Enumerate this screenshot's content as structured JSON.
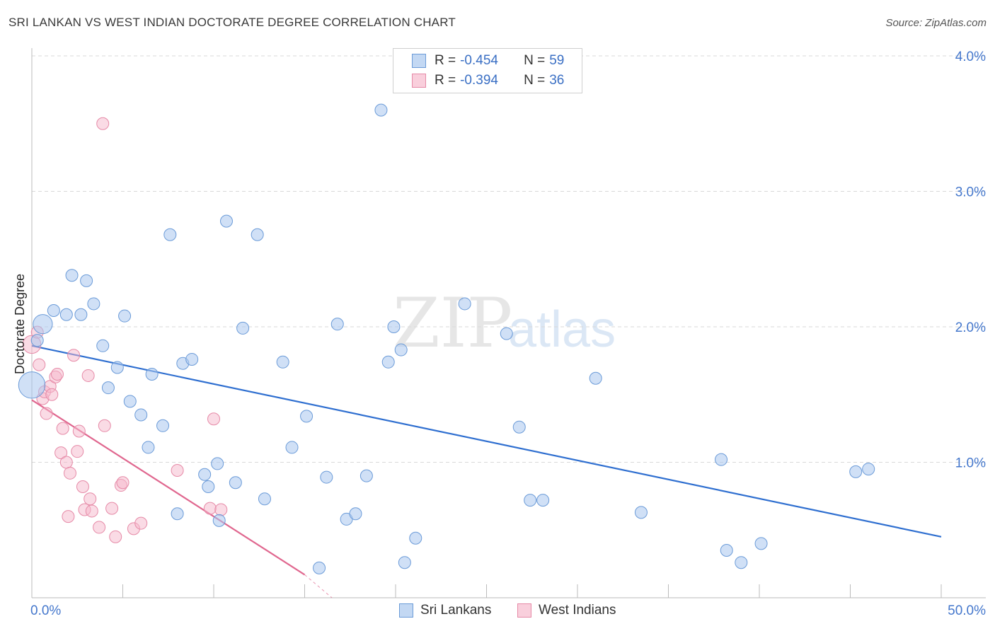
{
  "title": "SRI LANKAN VS WEST INDIAN DOCTORATE DEGREE CORRELATION CHART",
  "source": "Source: ZipAtlas.com",
  "watermark": {
    "zip": "ZIP",
    "atlas": "atlas"
  },
  "colors": {
    "blue": "#6b9bd8",
    "blue_fill": "#a9c7ef",
    "blue_line": "#2f6fd0",
    "pink": "#e68aa7",
    "pink_fill": "#f6b8cb",
    "pink_line": "#e0678f",
    "accent_text": "#3a6fc4"
  },
  "legend": [
    {
      "name": "Sri Lankans",
      "r_label": "R = ",
      "r": "-0.454",
      "n_label": "N = ",
      "n": "59",
      "color": "blue"
    },
    {
      "name": "West Indians",
      "r_label": "R = ",
      "r": "-0.394",
      "n_label": "N = ",
      "n": "36",
      "color": "pink"
    }
  ],
  "chart_data": {
    "type": "scatter",
    "title": "SRI LANKAN VS WEST INDIAN DOCTORATE DEGREE CORRELATION CHART",
    "xlabel": "",
    "ylabel": "Doctorate Degree",
    "xlim": [
      0,
      50
    ],
    "ylim": [
      0,
      4.0
    ],
    "x_tick_labels": [
      "0.0%",
      "50.0%"
    ],
    "y_ticks": [
      1.0,
      2.0,
      3.0,
      4.0
    ],
    "y_tick_labels": [
      "1.0%",
      "2.0%",
      "3.0%",
      "4.0%"
    ],
    "grid": true,
    "legend_position": "top-center",
    "series": [
      {
        "name": "Sri Lankans",
        "r": -0.454,
        "n": 59,
        "points": [
          [
            0.0,
            1.57,
            2.2
          ],
          [
            0.6,
            2.02,
            1.6
          ],
          [
            1.2,
            2.12,
            1
          ],
          [
            1.9,
            2.09,
            1
          ],
          [
            2.2,
            2.38,
            1
          ],
          [
            2.7,
            2.09,
            1
          ],
          [
            3.0,
            2.34,
            1
          ],
          [
            3.4,
            2.17,
            1
          ],
          [
            3.9,
            1.86,
            1
          ],
          [
            4.2,
            1.55,
            1
          ],
          [
            4.7,
            1.7,
            1
          ],
          [
            5.1,
            2.08,
            1
          ],
          [
            5.4,
            1.45,
            1
          ],
          [
            6.0,
            1.35,
            1
          ],
          [
            6.4,
            1.11,
            1
          ],
          [
            6.6,
            1.65,
            1
          ],
          [
            7.2,
            1.27,
            1
          ],
          [
            7.6,
            2.68,
            1
          ],
          [
            8.0,
            0.62,
            1
          ],
          [
            8.3,
            1.73,
            1
          ],
          [
            8.8,
            1.76,
            1
          ],
          [
            9.5,
            0.91,
            1
          ],
          [
            9.7,
            0.82,
            1
          ],
          [
            10.2,
            0.99,
            1
          ],
          [
            10.3,
            0.57,
            1
          ],
          [
            10.7,
            2.78,
            1
          ],
          [
            11.2,
            0.85,
            1
          ],
          [
            11.6,
            1.99,
            1
          ],
          [
            12.4,
            2.68,
            1
          ],
          [
            12.8,
            0.73,
            1
          ],
          [
            13.8,
            1.74,
            1
          ],
          [
            14.3,
            1.11,
            1
          ],
          [
            15.1,
            1.34,
            1
          ],
          [
            15.8,
            0.22,
            1
          ],
          [
            16.2,
            0.89,
            1
          ],
          [
            16.8,
            2.02,
            1
          ],
          [
            17.3,
            0.58,
            1
          ],
          [
            17.8,
            0.62,
            1
          ],
          [
            18.4,
            0.9,
            1
          ],
          [
            19.2,
            3.6,
            1
          ],
          [
            19.6,
            1.74,
            1
          ],
          [
            19.9,
            2.0,
            1
          ],
          [
            20.3,
            1.83,
            1
          ],
          [
            20.5,
            0.26,
            1
          ],
          [
            21.1,
            0.44,
            1
          ],
          [
            23.8,
            2.17,
            1
          ],
          [
            26.1,
            1.95,
            1
          ],
          [
            26.8,
            1.26,
            1
          ],
          [
            27.4,
            0.72,
            1
          ],
          [
            28.1,
            0.72,
            1
          ],
          [
            31.0,
            1.62,
            1
          ],
          [
            33.5,
            0.63,
            1
          ],
          [
            37.9,
            1.02,
            1
          ],
          [
            38.2,
            0.35,
            1
          ],
          [
            39.0,
            0.26,
            1
          ],
          [
            40.1,
            0.4,
            1
          ],
          [
            45.3,
            0.93,
            1
          ],
          [
            46.0,
            0.95,
            1
          ],
          [
            0.3,
            1.9,
            1
          ]
        ],
        "trend": {
          "x0": 0,
          "y0": 1.86,
          "x1": 50,
          "y1": 0.45
        }
      },
      {
        "name": "West Indians",
        "r": -0.394,
        "n": 36,
        "points": [
          [
            0.0,
            1.87,
            1.5
          ],
          [
            0.3,
            1.96,
            1
          ],
          [
            0.4,
            1.72,
            1
          ],
          [
            0.6,
            1.47,
            1
          ],
          [
            0.7,
            1.52,
            1
          ],
          [
            0.8,
            1.36,
            1
          ],
          [
            1.0,
            1.56,
            1
          ],
          [
            1.1,
            1.5,
            1
          ],
          [
            1.3,
            1.63,
            1
          ],
          [
            1.4,
            1.65,
            1
          ],
          [
            1.6,
            1.07,
            1
          ],
          [
            1.7,
            1.25,
            1
          ],
          [
            1.9,
            1.0,
            1
          ],
          [
            2.0,
            0.6,
            1
          ],
          [
            2.1,
            0.92,
            1
          ],
          [
            2.3,
            1.79,
            1
          ],
          [
            2.5,
            1.08,
            1
          ],
          [
            2.6,
            1.23,
            1
          ],
          [
            2.8,
            0.82,
            1
          ],
          [
            2.9,
            0.65,
            1
          ],
          [
            3.1,
            1.64,
            1
          ],
          [
            3.2,
            0.73,
            1
          ],
          [
            3.3,
            0.64,
            1
          ],
          [
            3.7,
            0.52,
            1
          ],
          [
            3.9,
            3.5,
            1
          ],
          [
            4.0,
            1.27,
            1
          ],
          [
            4.4,
            0.66,
            1
          ],
          [
            4.6,
            0.45,
            1
          ],
          [
            4.9,
            0.83,
            1
          ],
          [
            5.0,
            0.85,
            1
          ],
          [
            5.6,
            0.51,
            1
          ],
          [
            6.0,
            0.55,
            1
          ],
          [
            8.0,
            0.94,
            1
          ],
          [
            9.8,
            0.66,
            1
          ],
          [
            10.0,
            1.32,
            1
          ],
          [
            10.4,
            0.65,
            1
          ]
        ],
        "trend": {
          "x0": 0,
          "y0": 1.46,
          "x1": 15,
          "y1": 0.17
        },
        "trend_dashed_extension": {
          "x0": 15,
          "y0": 0.17,
          "x1": 16.5,
          "y1": 0.0
        }
      }
    ]
  }
}
